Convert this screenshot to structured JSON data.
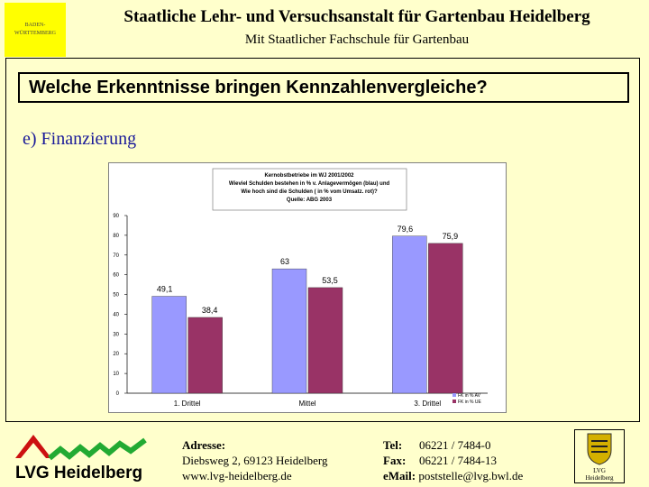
{
  "header": {
    "logo_line1": "BADEN-",
    "logo_line2": "WÜRTTEMBERG",
    "title": "Staatliche Lehr- und Versuchsanstalt für Gartenbau Heidelberg",
    "subtitle": "Mit Staatlicher Fachschule für Gartenbau"
  },
  "slide": {
    "question": "Welche Erkenntnisse bringen Kennzahlenvergleiche?",
    "section": "e) Finanzierung"
  },
  "chart_data": {
    "type": "bar",
    "title_lines": [
      "Kernobstbetriebe im WJ 2001/2002",
      "Wieviel Schulden bestehen in % v. Anlagevermögen (blau) und",
      "Wie hoch sind die Schulden ( in % vom Umsatz. rot)?",
      "Quelle: ABG 2003"
    ],
    "categories": [
      "1. Drittel",
      "Mittel",
      "3. Drittel"
    ],
    "series": [
      {
        "name": "FK in % AV",
        "color": "#9999ff",
        "values": [
          49.1,
          63,
          79.6
        ],
        "labels": [
          "49,1",
          "63",
          "79,6"
        ]
      },
      {
        "name": "FK in % UE",
        "color": "#993366",
        "values": [
          38.4,
          53.5,
          75.9
        ],
        "labels": [
          "38,4",
          "53,5",
          "75,9"
        ]
      }
    ],
    "ylim": [
      0,
      90
    ],
    "yticks": [
      0,
      10,
      20,
      30,
      40,
      50,
      60,
      70,
      80,
      90
    ],
    "grid": false,
    "legend": "bottom-right"
  },
  "footer": {
    "logo_text": "LVG Heidelberg",
    "address_label": "Adresse:",
    "address_street": "Diebsweg 2, 69123 Heidelberg",
    "address_web": "www.lvg-heidelberg.de",
    "tel_label": "Tel:",
    "tel_value": "06221 / 7484-0",
    "fax_label": "Fax:",
    "fax_value": "06221 / 7484-13",
    "email_label": "eMail:",
    "email_value": "poststelle@lvg.bwl.de",
    "crest_text1": "LVG",
    "crest_text2": "Heidelberg"
  },
  "colors": {
    "background": "#ffffcc",
    "section_text": "#1a1a99",
    "logo_red": "#cc1111",
    "logo_green": "#22aa33"
  }
}
